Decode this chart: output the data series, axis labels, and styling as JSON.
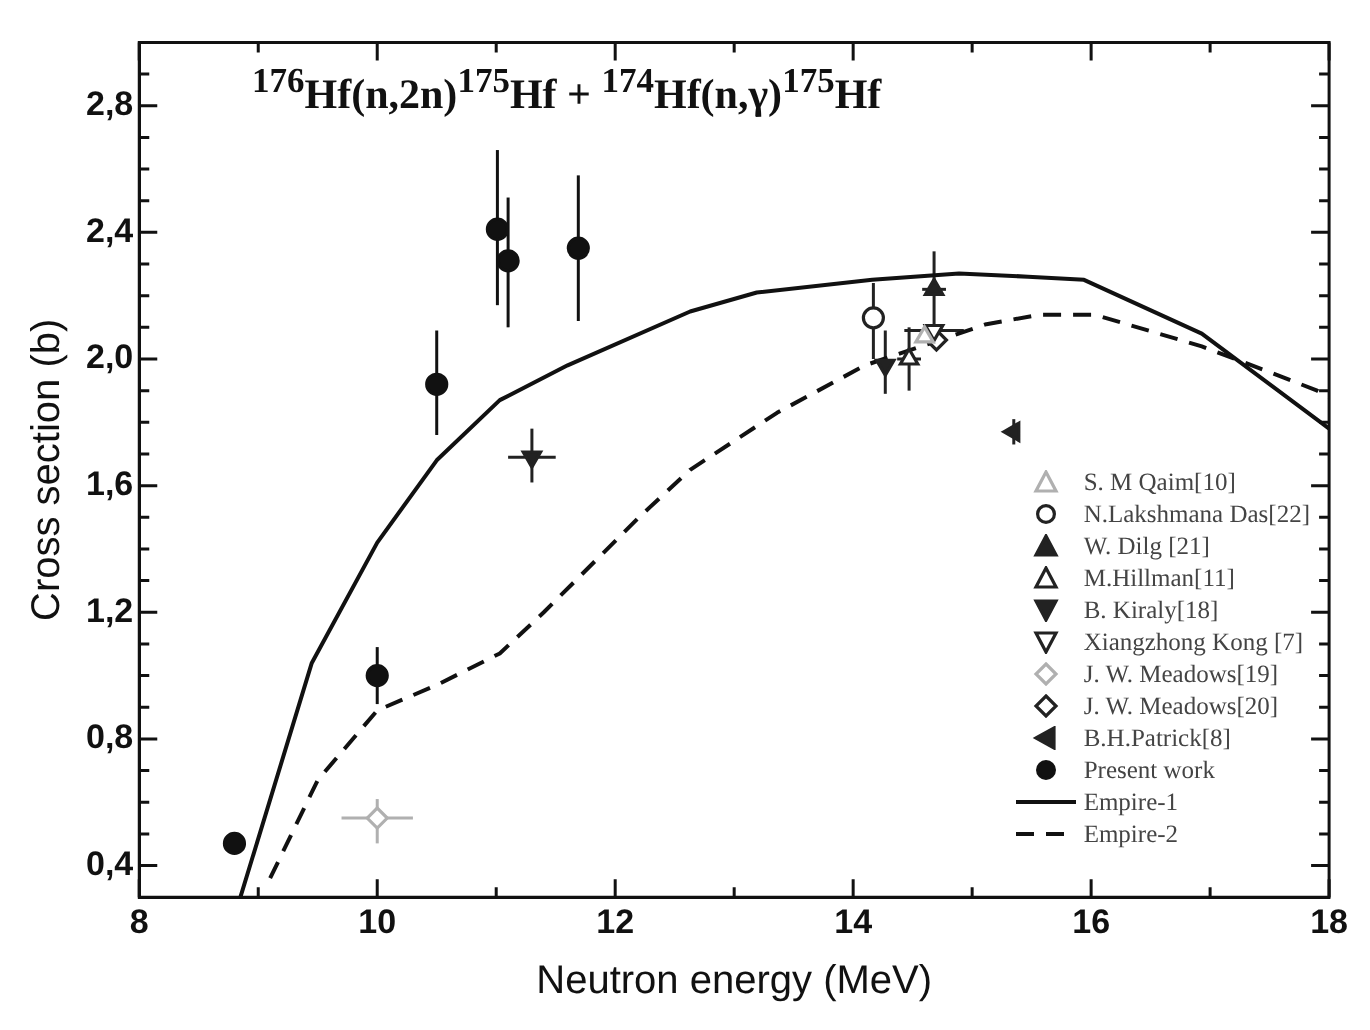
{
  "chart_data": {
    "type": "scatter",
    "title": "$^{176}$Hf(n,2n)$^{175}$Hf + $^{174}$Hf(n,γ)$^{175}$Hf",
    "xlabel": "Neutron energy (MeV)",
    "ylabel": "Cross section (b)",
    "xlim": [
      8,
      18
    ],
    "ylim": [
      0.3,
      3.0
    ],
    "xticks": [
      8,
      {
        "value": 9,
        "label": null
      },
      10,
      {
        "value": 11,
        "label": null
      },
      12,
      {
        "value": 13,
        "label": null
      },
      14,
      {
        "value": 15,
        "label": null
      },
      16,
      {
        "value": 17,
        "label": null
      },
      18
    ],
    "yticks": [
      {
        "value": 0.4,
        "label": "0,4"
      },
      {
        "value": 0.5,
        "label": null
      },
      {
        "value": 0.6,
        "label": null
      },
      {
        "value": 0.7,
        "label": null
      },
      {
        "value": 0.8,
        "label": "0,8"
      },
      {
        "value": 0.9,
        "label": null
      },
      {
        "value": 1.0,
        "label": null
      },
      {
        "value": 1.1,
        "label": null
      },
      {
        "value": 1.2,
        "label": "1,2"
      },
      {
        "value": 1.3,
        "label": null
      },
      {
        "value": 1.4,
        "label": null
      },
      {
        "value": 1.5,
        "label": null
      },
      {
        "value": 1.6,
        "label": "1,6"
      },
      {
        "value": 1.7,
        "label": null
      },
      {
        "value": 1.8,
        "label": null
      },
      {
        "value": 1.9,
        "label": null
      },
      {
        "value": 2.0,
        "label": "2,0"
      },
      {
        "value": 2.1,
        "label": null
      },
      {
        "value": 2.2,
        "label": null
      },
      {
        "value": 2.3,
        "label": null
      },
      {
        "value": 2.4,
        "label": "2,4"
      },
      {
        "value": 2.5,
        "label": null
      },
      {
        "value": 2.6,
        "label": null
      },
      {
        "value": 2.7,
        "label": null
      },
      {
        "value": 2.8,
        "label": "2,8"
      },
      {
        "value": 2.9,
        "label": null
      }
    ],
    "grid": false,
    "legend": "bottom right",
    "series": [
      {
        "name": "S. M Qaim[10]",
        "color": "#b0b0b0",
        "marker": "triangle-open",
        "x": [
          14.6
        ],
        "values": [
          2.07
        ]
      },
      {
        "name": "N.Lakshmana Das[22]",
        "color": "#222222",
        "marker": "circle-open",
        "x": [
          14.17
        ],
        "values": [
          2.13
        ],
        "errors": [
          [
            2.0,
            2.24
          ]
        ]
      },
      {
        "name": "W. Dilg [21]",
        "color": "#222222",
        "marker": "triangle",
        "x": [
          14.68
        ],
        "values": [
          2.22
        ],
        "errors": [
          0.12
        ],
        "xerrors": [
          0.1
        ]
      },
      {
        "name": "M.Hillman[11]",
        "color": "#222222",
        "marker": "triangle-open",
        "x": [
          14.47
        ],
        "values": [
          2.0
        ],
        "errors": [
          0.1
        ],
        "xerrors": [
          0.1
        ]
      },
      {
        "name": "B. Kiraly[18]",
        "color": "#222222",
        "marker": "triangle-down",
        "x": [
          11.3,
          14.27
        ],
        "values": [
          1.69,
          1.98
        ],
        "errors": [
          [
            1.61,
            1.78
          ],
          [
            1.89,
            2.09
          ]
        ],
        "xerrors": [
          0.2,
          null
        ]
      },
      {
        "name": "Xiangzhong Kong [7]",
        "color": "#222222",
        "marker": "triangle-down-open",
        "x": [
          14.68
        ],
        "values": [
          2.09
        ],
        "xerrors": [
          0.25
        ]
      },
      {
        "name": "J. W. Meadows[19]",
        "color": "#b0b0b0",
        "marker": "diamond-open",
        "x": [
          10.0
        ],
        "values": [
          0.55
        ],
        "errors": [
          [
            0.47,
            0.61
          ]
        ],
        "xerrors": [
          0.3
        ]
      },
      {
        "name": "J. W. Meadows[20]",
        "color": "#222222",
        "marker": "diamond-open",
        "x": [
          14.7
        ],
        "values": [
          2.06
        ]
      },
      {
        "name": "B.H.Patrick[8]",
        "color": "#222222",
        "marker": "triangle-left",
        "x": [
          15.35
        ],
        "values": [
          1.77
        ],
        "errors": [
          [
            1.73,
            1.81
          ]
        ]
      },
      {
        "name": "Present work",
        "color": "#111111",
        "marker": "circle",
        "x": [
          8.8,
          10.0,
          10.5,
          11.01,
          11.1,
          11.69
        ],
        "values": [
          0.47,
          1.0,
          1.92,
          2.41,
          2.31,
          2.35
        ],
        "errors": [
          0.02,
          [
            0.91,
            1.09
          ],
          [
            1.76,
            2.09
          ],
          [
            2.17,
            2.66
          ],
          [
            2.1,
            2.51
          ],
          [
            2.12,
            2.58
          ]
        ]
      },
      {
        "name": "Empire-1",
        "type": "line",
        "color": "#111111",
        "marker": "none",
        "line_style": "solid",
        "x": [
          8.85,
          9.45,
          10.0,
          10.5,
          11.03,
          11.6,
          12.63,
          13.19,
          14.16,
          14.89,
          15.47,
          15.94,
          16.93,
          17.93,
          18.0
        ],
        "values": [
          0.3,
          1.04,
          1.42,
          1.68,
          1.87,
          1.98,
          2.15,
          2.21,
          2.25,
          2.27,
          2.26,
          2.25,
          2.08,
          1.8,
          1.78
        ]
      },
      {
        "name": "Empire-2",
        "type": "line",
        "color": "#111111",
        "marker": "none",
        "line_style": "dashed",
        "x": [
          9.1,
          9.5,
          10.0,
          10.5,
          11.03,
          11.4,
          12.2,
          12.63,
          13.36,
          14.1,
          15.12,
          15.57,
          16.03,
          16.93,
          17.56,
          17.9,
          18.0
        ],
        "values": [
          0.36,
          0.67,
          0.89,
          0.97,
          1.07,
          1.2,
          1.5,
          1.65,
          1.83,
          1.98,
          2.11,
          2.14,
          2.14,
          2.04,
          1.95,
          1.9,
          1.88
        ]
      }
    ]
  }
}
